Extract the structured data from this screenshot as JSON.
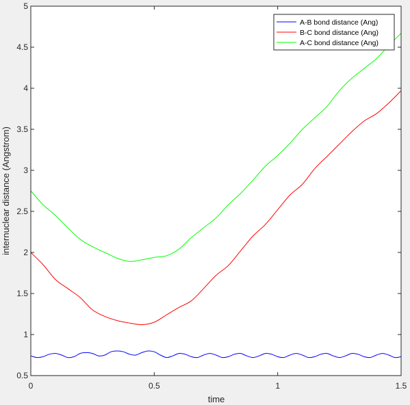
{
  "chart_data": {
    "type": "line",
    "xlabel": "time",
    "ylabel": "internuclear distance (Angstrom)",
    "xlim": [
      0,
      1.5
    ],
    "ylim": [
      0.5,
      5
    ],
    "xticks": [
      0,
      0.5,
      1,
      1.5
    ],
    "xtick_labels": [
      "0",
      "0.5",
      "1",
      "1.5"
    ],
    "yticks": [
      0.5,
      1,
      1.5,
      2,
      2.5,
      3,
      3.5,
      4,
      4.5,
      5
    ],
    "ytick_labels": [
      "0.5",
      "1",
      "1.5",
      "2",
      "2.5",
      "3",
      "3.5",
      "4",
      "4.5",
      "5"
    ],
    "grid": false,
    "legend_position": "top-right",
    "series": [
      {
        "name": "A-B bond distance (Ang)",
        "color": "#0000ff",
        "x": [
          0,
          0.025,
          0.05,
          0.075,
          0.1,
          0.125,
          0.15,
          0.175,
          0.2,
          0.225,
          0.25,
          0.275,
          0.3,
          0.325,
          0.35,
          0.375,
          0.4,
          0.425,
          0.45,
          0.475,
          0.5,
          0.525,
          0.55,
          0.575,
          0.6,
          0.625,
          0.65,
          0.675,
          0.7,
          0.725,
          0.75,
          0.775,
          0.8,
          0.825,
          0.85,
          0.875,
          0.9,
          0.925,
          0.95,
          0.975,
          1.0,
          1.025,
          1.05,
          1.075,
          1.1,
          1.125,
          1.15,
          1.175,
          1.2,
          1.225,
          1.25,
          1.275,
          1.3,
          1.325,
          1.35,
          1.375,
          1.4,
          1.425,
          1.45,
          1.475,
          1.5
        ],
        "y": [
          0.74,
          0.72,
          0.73,
          0.76,
          0.77,
          0.75,
          0.72,
          0.73,
          0.77,
          0.78,
          0.77,
          0.74,
          0.75,
          0.79,
          0.8,
          0.79,
          0.76,
          0.75,
          0.78,
          0.8,
          0.79,
          0.75,
          0.72,
          0.74,
          0.77,
          0.76,
          0.73,
          0.72,
          0.75,
          0.77,
          0.75,
          0.72,
          0.73,
          0.76,
          0.77,
          0.74,
          0.72,
          0.74,
          0.77,
          0.76,
          0.73,
          0.72,
          0.75,
          0.77,
          0.75,
          0.72,
          0.73,
          0.76,
          0.77,
          0.74,
          0.72,
          0.74,
          0.77,
          0.76,
          0.73,
          0.72,
          0.75,
          0.77,
          0.75,
          0.72,
          0.73
        ]
      },
      {
        "name": "B-C bond distance (Ang)",
        "color": "#ff0000",
        "x": [
          0,
          0.05,
          0.1,
          0.15,
          0.2,
          0.25,
          0.3,
          0.35,
          0.4,
          0.45,
          0.5,
          0.55,
          0.6,
          0.65,
          0.7,
          0.75,
          0.8,
          0.85,
          0.9,
          0.95,
          1.0,
          1.05,
          1.1,
          1.15,
          1.2,
          1.25,
          1.3,
          1.35,
          1.4,
          1.45,
          1.5
        ],
        "y": [
          2.0,
          1.85,
          1.67,
          1.56,
          1.45,
          1.3,
          1.22,
          1.17,
          1.14,
          1.12,
          1.15,
          1.24,
          1.33,
          1.41,
          1.56,
          1.72,
          1.84,
          2.02,
          2.2,
          2.34,
          2.52,
          2.7,
          2.83,
          3.02,
          3.17,
          3.32,
          3.47,
          3.6,
          3.69,
          3.82,
          3.97
        ]
      },
      {
        "name": "A-C bond distance (Ang)",
        "color": "#00ff00",
        "x": [
          0,
          0.05,
          0.1,
          0.15,
          0.2,
          0.25,
          0.3,
          0.35,
          0.4,
          0.45,
          0.5,
          0.55,
          0.6,
          0.65,
          0.7,
          0.75,
          0.8,
          0.85,
          0.9,
          0.95,
          1.0,
          1.05,
          1.1,
          1.15,
          1.2,
          1.25,
          1.3,
          1.35,
          1.4,
          1.45,
          1.5
        ],
        "y": [
          2.75,
          2.58,
          2.45,
          2.3,
          2.16,
          2.07,
          2.0,
          1.93,
          1.89,
          1.91,
          1.94,
          1.96,
          2.04,
          2.18,
          2.3,
          2.42,
          2.58,
          2.72,
          2.88,
          3.05,
          3.18,
          3.33,
          3.5,
          3.64,
          3.78,
          3.97,
          4.12,
          4.24,
          4.36,
          4.52,
          4.67
        ]
      }
    ]
  }
}
